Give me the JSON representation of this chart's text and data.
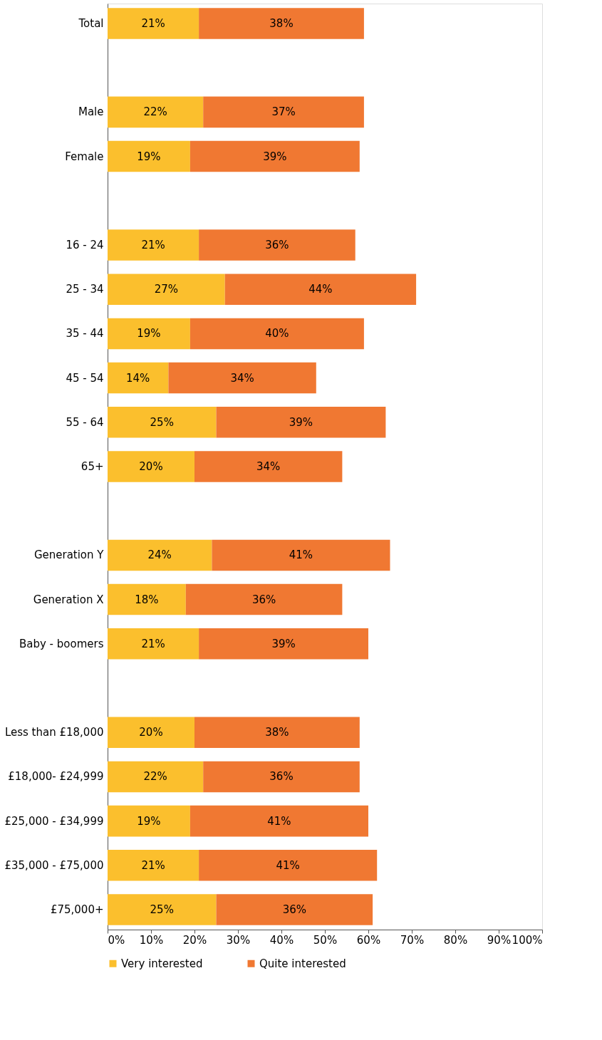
{
  "chart_data": {
    "type": "bar",
    "orientation": "horizontal",
    "stacked": true,
    "categories": [
      "Total",
      null,
      "Male",
      "Female",
      null,
      "16 - 24",
      "25 - 34",
      "35 - 44",
      "45 - 54",
      "55 - 64",
      "65+",
      null,
      "Generation Y",
      "Generation X",
      "Baby - boomers",
      null,
      "Less than £18,000",
      "£18,000- £24,999",
      "£25,000 - £34,999",
      "£35,000 - £75,000",
      "£75,000+"
    ],
    "series": [
      {
        "name": "Very interested",
        "color": "#fbbf2d",
        "values": [
          21,
          null,
          22,
          19,
          null,
          21,
          27,
          19,
          14,
          25,
          20,
          null,
          24,
          18,
          21,
          null,
          20,
          22,
          19,
          21,
          25
        ],
        "value_labels": [
          "21%",
          null,
          "22%",
          "19%",
          null,
          "21%",
          "27%",
          "19%",
          "14%",
          "25%",
          "20%",
          null,
          "24%",
          "18%",
          "21%",
          null,
          "20%",
          "22%",
          "19%",
          "21%",
          "25%"
        ]
      },
      {
        "name": "Quite interested",
        "color": "#f07832",
        "values": [
          38,
          null,
          37,
          39,
          null,
          36,
          44,
          40,
          34,
          39,
          34,
          null,
          41,
          36,
          39,
          null,
          38,
          36,
          41,
          41,
          36
        ],
        "value_labels": [
          "38%",
          null,
          "37%",
          "39%",
          null,
          "36%",
          "44%",
          "40%",
          "34%",
          "39%",
          "34%",
          null,
          "41%",
          "36%",
          "39%",
          null,
          "38%",
          "36%",
          "41%",
          "41%",
          "36%"
        ]
      }
    ],
    "xlim": [
      0,
      100
    ],
    "xticks": [
      {
        "value": 0,
        "label": "0%"
      },
      {
        "value": 10,
        "label": "10%"
      },
      {
        "value": 20,
        "label": "20%"
      },
      {
        "value": 30,
        "label": "30%"
      },
      {
        "value": 40,
        "label": "40%"
      },
      {
        "value": 50,
        "label": "50%"
      },
      {
        "value": 60,
        "label": "60%"
      },
      {
        "value": 70,
        "label": "70%"
      },
      {
        "value": 80,
        "label": "80%"
      },
      {
        "value": 90,
        "label": "90%"
      },
      {
        "value": 100,
        "label": "100%"
      }
    ],
    "grid": false,
    "legend": "bottom"
  }
}
